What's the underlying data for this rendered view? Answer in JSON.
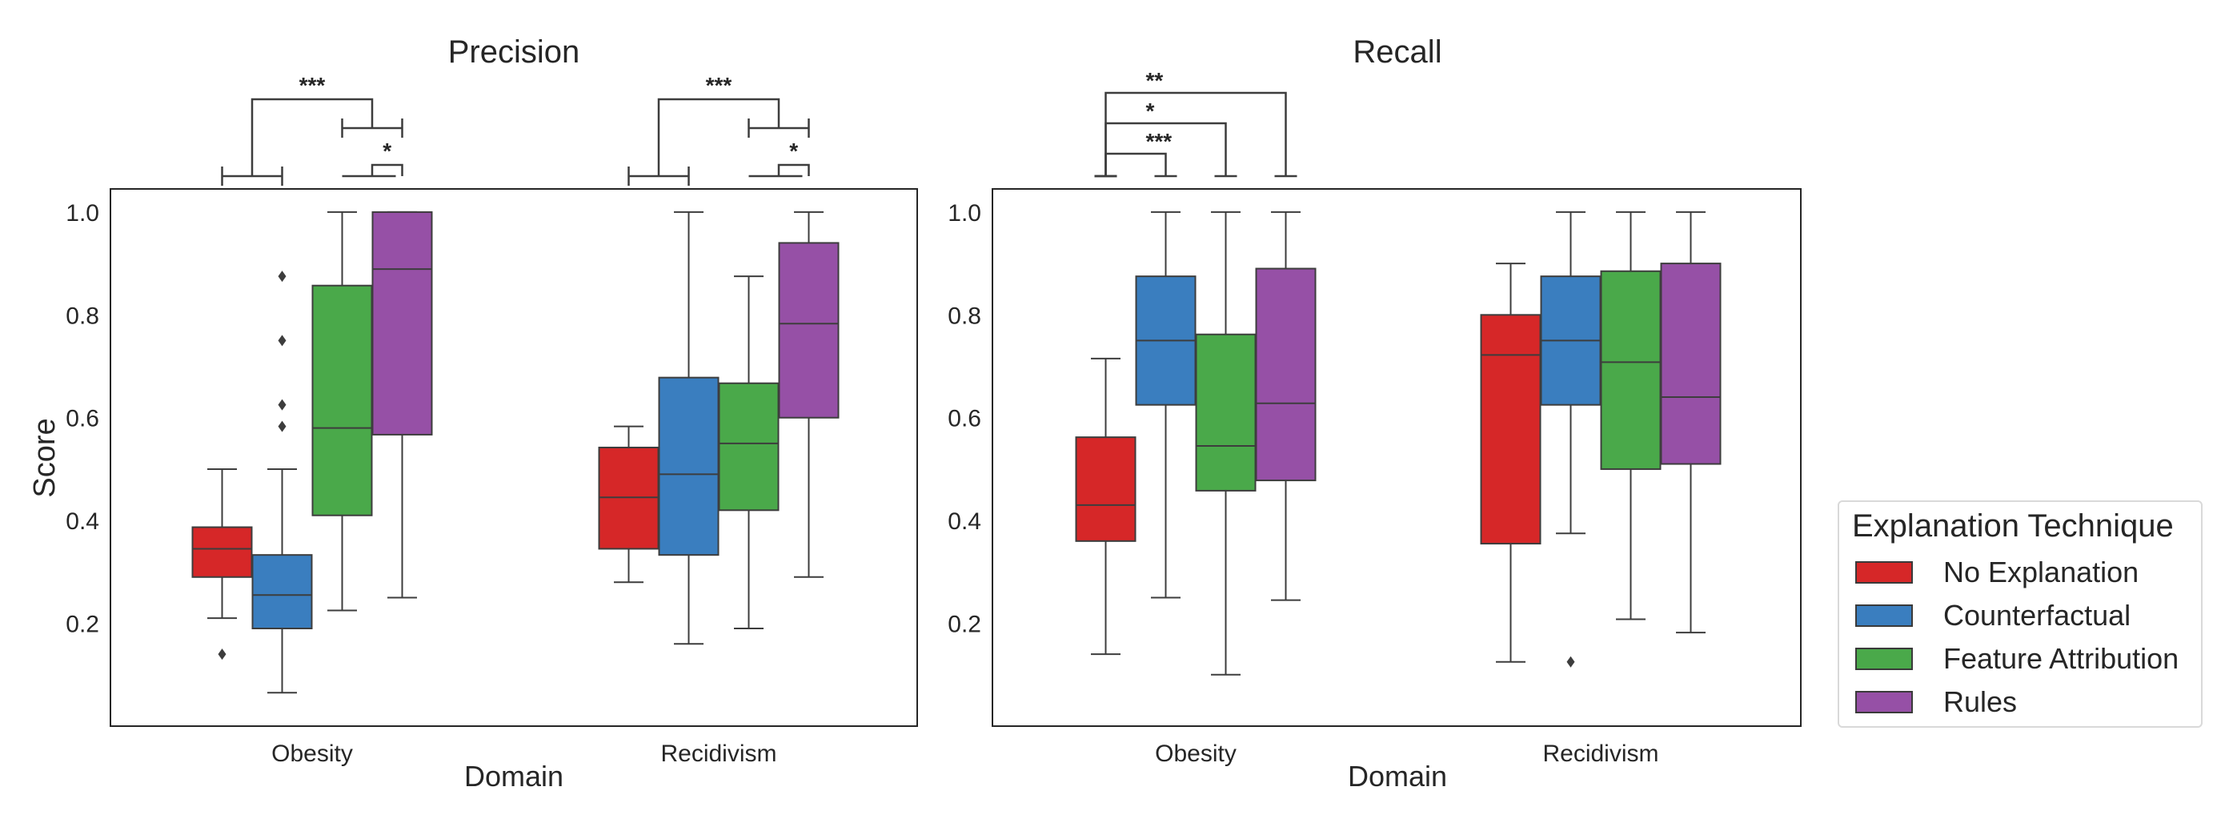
{
  "figure": {
    "ylabel": "Score"
  },
  "legend": {
    "title": "Explanation Technique",
    "items": [
      {
        "label": "No Explanation",
        "color": "#d62728"
      },
      {
        "label": "Counterfactual",
        "color": "#3a7ebf"
      },
      {
        "label": "Feature Attribution",
        "color": "#4aa94a"
      },
      {
        "label": "Rules",
        "color": "#9650a6"
      }
    ]
  },
  "chart_data": [
    {
      "type": "box",
      "title": "Precision",
      "xlabel": "Domain",
      "ylabel": "Score",
      "categories": [
        "Obesity",
        "Recidivism"
      ],
      "ylim": [
        0.0,
        1.045
      ],
      "yticks": [
        0.2,
        0.4,
        0.6,
        0.8,
        1.0
      ],
      "series": [
        {
          "name": "No Explanation",
          "color": "#d62728",
          "boxes": [
            {
              "whislo": 0.21,
              "q1": 0.29,
              "med": 0.345,
              "q3": 0.387,
              "whishi": 0.5,
              "fliers": [
                0.14
              ]
            },
            {
              "whislo": 0.28,
              "q1": 0.345,
              "med": 0.445,
              "q3": 0.542,
              "whishi": 0.583,
              "fliers": []
            }
          ]
        },
        {
          "name": "Counterfactual",
          "color": "#3a7ebf",
          "boxes": [
            {
              "whislo": 0.065,
              "q1": 0.19,
              "med": 0.255,
              "q3": 0.333,
              "whishi": 0.5,
              "fliers": [
                0.583,
                0.625,
                0.75,
                0.875
              ]
            },
            {
              "whislo": 0.16,
              "q1": 0.333,
              "med": 0.49,
              "q3": 0.678,
              "whishi": 1.0,
              "fliers": []
            }
          ]
        },
        {
          "name": "Feature Attribution",
          "color": "#4aa94a",
          "boxes": [
            {
              "whislo": 0.225,
              "q1": 0.41,
              "med": 0.58,
              "q3": 0.857,
              "whishi": 1.0,
              "fliers": []
            },
            {
              "whislo": 0.19,
              "q1": 0.42,
              "med": 0.55,
              "q3": 0.667,
              "whishi": 0.875,
              "fliers": []
            }
          ]
        },
        {
          "name": "Rules",
          "color": "#9650a6",
          "boxes": [
            {
              "whislo": 0.25,
              "q1": 0.567,
              "med": 0.889,
              "q3": 1.0,
              "whishi": 1.0,
              "fliers": []
            },
            {
              "whislo": 0.29,
              "q1": 0.6,
              "med": 0.783,
              "q3": 0.94,
              "whishi": 1.0,
              "fliers": []
            }
          ]
        }
      ],
      "significance": [
        {
          "domain": "Obesity",
          "left": [
            "No Explanation",
            "Counterfactual"
          ],
          "right": [
            "Feature Attribution",
            "Rules"
          ],
          "stars": "***"
        },
        {
          "domain": "Obesity",
          "left": [
            "Feature Attribution",
            "Rules"
          ],
          "right": [
            "Rules"
          ],
          "stars": "*"
        },
        {
          "domain": "Recidivism",
          "left": [
            "No Explanation",
            "Counterfactual"
          ],
          "right": [
            "Feature Attribution",
            "Rules"
          ],
          "stars": "***"
        },
        {
          "domain": "Recidivism",
          "left": [
            "Feature Attribution",
            "Rules"
          ],
          "right": [
            "Rules"
          ],
          "stars": "*"
        }
      ]
    },
    {
      "type": "box",
      "title": "Recall",
      "xlabel": "Domain",
      "ylabel": "",
      "categories": [
        "Obesity",
        "Recidivism"
      ],
      "ylim": [
        0.0,
        1.045
      ],
      "yticks": [
        0.2,
        0.4,
        0.6,
        0.8,
        1.0
      ],
      "series": [
        {
          "name": "No Explanation",
          "color": "#d62728",
          "boxes": [
            {
              "whislo": 0.14,
              "q1": 0.36,
              "med": 0.43,
              "q3": 0.562,
              "whishi": 0.715,
              "fliers": []
            },
            {
              "whislo": 0.125,
              "q1": 0.355,
              "med": 0.722,
              "q3": 0.8,
              "whishi": 0.9,
              "fliers": []
            }
          ]
        },
        {
          "name": "Counterfactual",
          "color": "#3a7ebf",
          "boxes": [
            {
              "whislo": 0.25,
              "q1": 0.625,
              "med": 0.75,
              "q3": 0.875,
              "whishi": 1.0,
              "fliers": []
            },
            {
              "whislo": 0.375,
              "q1": 0.625,
              "med": 0.75,
              "q3": 0.875,
              "whishi": 1.0,
              "fliers": [
                0.125
              ]
            }
          ]
        },
        {
          "name": "Feature Attribution",
          "color": "#4aa94a",
          "boxes": [
            {
              "whislo": 0.1,
              "q1": 0.458,
              "med": 0.545,
              "q3": 0.762,
              "whishi": 1.0,
              "fliers": []
            },
            {
              "whislo": 0.208,
              "q1": 0.5,
              "med": 0.708,
              "q3": 0.885,
              "whishi": 1.0,
              "fliers": []
            }
          ]
        },
        {
          "name": "Rules",
          "color": "#9650a6",
          "boxes": [
            {
              "whislo": 0.245,
              "q1": 0.478,
              "med": 0.628,
              "q3": 0.89,
              "whishi": 1.0,
              "fliers": []
            },
            {
              "whislo": 0.182,
              "q1": 0.51,
              "med": 0.64,
              "q3": 0.9,
              "whishi": 1.0,
              "fliers": []
            }
          ]
        }
      ],
      "significance": [
        {
          "domain": "Obesity",
          "left": [
            "No Explanation"
          ],
          "right": [
            "Counterfactual"
          ],
          "stars": "***"
        },
        {
          "domain": "Obesity",
          "left": [
            "No Explanation"
          ],
          "right": [
            "Feature Attribution"
          ],
          "stars": "*"
        },
        {
          "domain": "Obesity",
          "left": [
            "No Explanation"
          ],
          "right": [
            "Rules"
          ],
          "stars": "**"
        }
      ]
    }
  ]
}
